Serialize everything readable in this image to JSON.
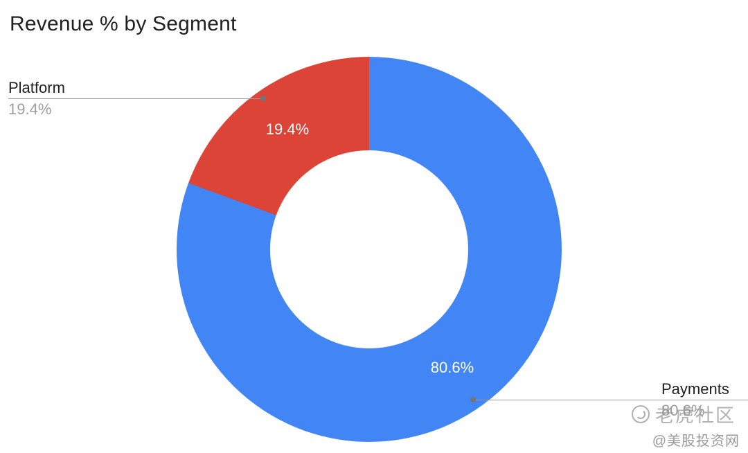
{
  "title": "Revenue % by Segment",
  "chart_data": {
    "type": "pie",
    "donut": true,
    "hole_ratio": 0.51,
    "title": "Revenue % by Segment",
    "legend_position": "labeled-callouts",
    "slices": [
      {
        "label": "Payments",
        "value": 80.6,
        "data_label": "80.6%",
        "color": "#4285F4"
      },
      {
        "label": "Platform",
        "value": 19.4,
        "data_label": "19.4%",
        "color": "#DB4437"
      }
    ]
  },
  "callouts": {
    "platform": {
      "label": "Platform",
      "percent": "19.4%"
    },
    "payments": {
      "label": "Payments",
      "percent": "80.6%"
    }
  },
  "watermark": {
    "community": "老虎社区",
    "handle": "@美股投资网",
    "logo": "tiger-logo"
  },
  "colors": {
    "payments_blue": "#4285F4",
    "platform_red": "#DB4437",
    "callout_gray": "#9E9E9E",
    "title_text": "#212121",
    "slice_label_text": "#FFFFFF",
    "background": "#FFFFFF"
  }
}
